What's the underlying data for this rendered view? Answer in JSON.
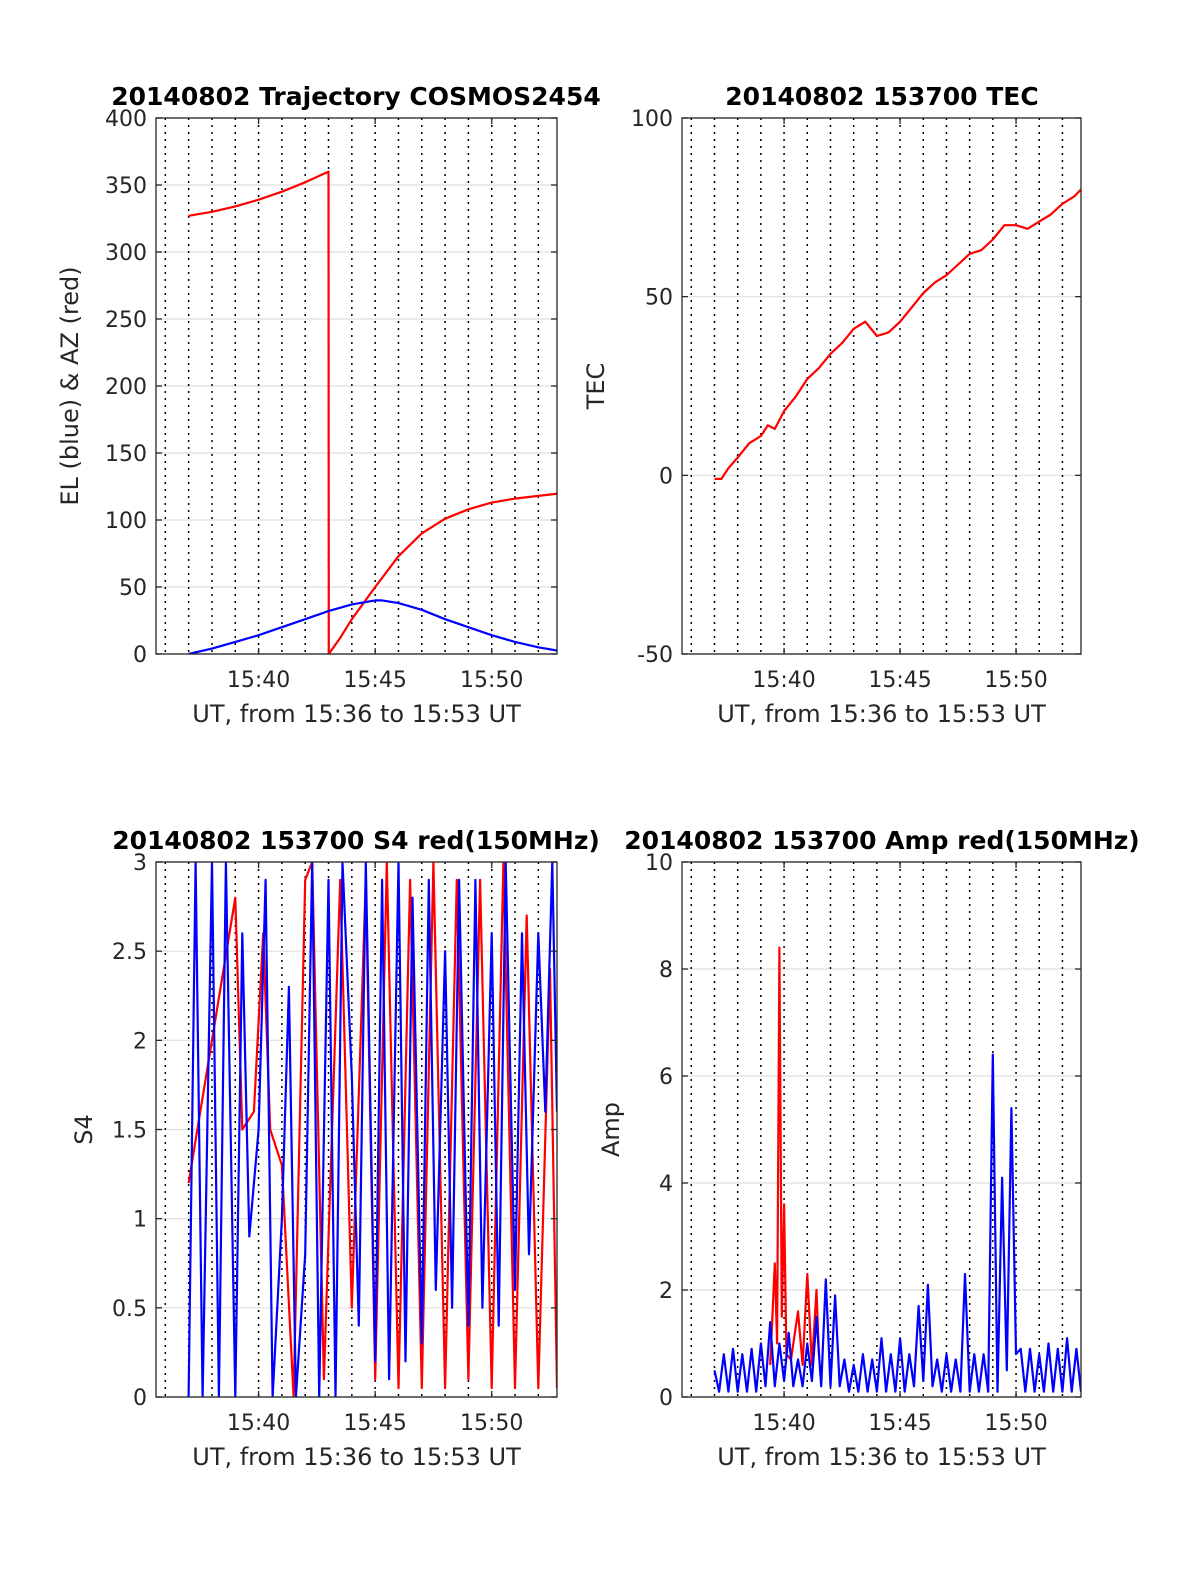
{
  "figure_date": "20140802",
  "chart_data": [
    {
      "id": "trajectory",
      "type": "line",
      "title": "20140802 Trajectory COSMOS2454",
      "xlabel": "UT, from 15:36 to 15:53 UT",
      "ylabel": "EL (blue) & AZ (red)",
      "xlim": [
        15.6,
        32.8
      ],
      "ylim": [
        0,
        400
      ],
      "xticks": [
        20,
        25,
        30
      ],
      "xtick_labels": [
        "15:40",
        "15:45",
        "15:50"
      ],
      "yticks": [
        0,
        50,
        100,
        150,
        200,
        250,
        300,
        350,
        400
      ],
      "ytick_labels": [
        "0",
        "50",
        "100",
        "150",
        "200",
        "250",
        "300",
        "350",
        "400"
      ],
      "vgrid_minutes": [
        16,
        17,
        18,
        19,
        20,
        21,
        22,
        23,
        24,
        25,
        26,
        27,
        28,
        29,
        30,
        31,
        32
      ],
      "grid": true,
      "series": [
        {
          "name": "AZ (red)",
          "color": "#ff0000",
          "x": [
            17,
            18,
            19,
            20,
            21,
            22,
            23,
            23.01,
            23.5,
            24,
            25,
            26,
            27,
            28,
            29,
            30,
            31,
            32,
            33
          ],
          "y": [
            327,
            330,
            334,
            339,
            345,
            352,
            360,
            0,
            12,
            26,
            50,
            73,
            90,
            101,
            108,
            113,
            116,
            118,
            120
          ]
        },
        {
          "name": "EL (blue)",
          "color": "#0000ff",
          "x": [
            17,
            18,
            19,
            20,
            21,
            22,
            23,
            24,
            25,
            25.3,
            26,
            27,
            28,
            29,
            30,
            31,
            32,
            33
          ],
          "y": [
            0,
            4,
            9,
            14,
            20,
            26,
            32,
            37,
            40,
            40,
            38,
            33,
            26,
            20,
            14,
            9,
            5,
            2
          ]
        }
      ]
    },
    {
      "id": "tec",
      "type": "line",
      "title": "20140802 153700 TEC",
      "xlabel": "UT, from 15:36 to 15:53 UT",
      "ylabel": "TEC",
      "xlim": [
        15.6,
        32.8
      ],
      "ylim": [
        -50,
        100
      ],
      "xticks": [
        20,
        25,
        30
      ],
      "xtick_labels": [
        "15:40",
        "15:45",
        "15:50"
      ],
      "yticks": [
        -50,
        0,
        50,
        100
      ],
      "ytick_labels": [
        "-50",
        "0",
        "50",
        "100"
      ],
      "vgrid_minutes": [
        16,
        17,
        18,
        19,
        20,
        21,
        22,
        23,
        24,
        25,
        26,
        27,
        28,
        29,
        30,
        31,
        32
      ],
      "grid": true,
      "series": [
        {
          "name": "TEC",
          "color": "#ff0000",
          "x": [
            17,
            17.3,
            17.6,
            18,
            18.5,
            19,
            19.3,
            19.6,
            20,
            20.5,
            21,
            21.5,
            22,
            22.5,
            23,
            23.5,
            24,
            24.5,
            25,
            25.5,
            26,
            26.5,
            27,
            27.5,
            28,
            28.5,
            29,
            29.5,
            30,
            30.5,
            31,
            31.5,
            32,
            32.5,
            32.8
          ],
          "y": [
            -1,
            -1,
            2,
            5,
            9,
            11,
            14,
            13,
            18,
            22,
            27,
            30,
            34,
            37,
            41,
            43,
            39,
            40,
            43,
            47,
            51,
            54,
            56,
            59,
            62,
            63,
            66,
            70,
            70,
            69,
            71,
            73,
            76,
            78,
            80
          ]
        }
      ]
    },
    {
      "id": "s4",
      "type": "line",
      "title": "20140802 153700 S4 red(150MHz)",
      "xlabel": "UT, from 15:36 to 15:53 UT",
      "ylabel": "S4",
      "xlim": [
        15.6,
        32.8
      ],
      "ylim": [
        0,
        3
      ],
      "xticks": [
        20,
        25,
        30
      ],
      "xtick_labels": [
        "15:40",
        "15:45",
        "15:50"
      ],
      "yticks": [
        0,
        0.5,
        1,
        1.5,
        2,
        2.5,
        3
      ],
      "ytick_labels": [
        "0",
        "0.5",
        "1",
        "1.5",
        "2",
        "2.5",
        "3"
      ],
      "vgrid_minutes": [
        16,
        17,
        18,
        19,
        20,
        21,
        22,
        23,
        24,
        25,
        26,
        27,
        28,
        29,
        30,
        31,
        32
      ],
      "grid": true,
      "series": [
        {
          "name": "red",
          "color": "#ff0000",
          "x": [
            17,
            19,
            19.3,
            19.8,
            20.2,
            20.5,
            21,
            21.5,
            22,
            22.3,
            22.8,
            23.5,
            24,
            24.6,
            25,
            25.5,
            26,
            26.5,
            27,
            27.5,
            28,
            28.5,
            29,
            29.5,
            30,
            30.5,
            31,
            31.5,
            32,
            32.5,
            32.8
          ],
          "y": [
            1.2,
            2.8,
            1.5,
            1.6,
            2.6,
            1.5,
            1.3,
            0.0,
            2.9,
            3,
            0.1,
            2.9,
            0.5,
            2.9,
            0.1,
            3,
            0.05,
            2.9,
            0.05,
            3,
            0.05,
            2.9,
            0.1,
            2.9,
            0.05,
            3,
            0.05,
            2.7,
            0.05,
            2.4,
            0.05
          ]
        },
        {
          "name": "blue",
          "color": "#0000ff",
          "x": [
            17,
            17.3,
            17.6,
            18,
            18.3,
            18.6,
            19,
            19.3,
            19.6,
            20,
            20.3,
            20.6,
            21,
            21.3,
            21.6,
            22,
            22.3,
            22.6,
            23,
            23.3,
            23.6,
            24,
            24.3,
            24.6,
            25,
            25.3,
            25.6,
            26,
            26.3,
            26.6,
            27,
            27.3,
            27.6,
            28,
            28.3,
            28.6,
            29,
            29.3,
            29.6,
            30,
            30.3,
            30.6,
            31,
            31.3,
            31.6,
            32,
            32.3,
            32.6,
            32.8
          ],
          "y": [
            0,
            3,
            0,
            3,
            0,
            3,
            0,
            2.6,
            0.9,
            1.5,
            2.9,
            0,
            1.0,
            2.3,
            0.0,
            0.8,
            3,
            0.0,
            2.9,
            0,
            3,
            1.8,
            0.4,
            3,
            0.2,
            2.9,
            0.1,
            3,
            0.2,
            2.8,
            0.3,
            2.9,
            0.6,
            2.5,
            0.5,
            2.9,
            0.4,
            2.9,
            0.5,
            2.6,
            0.4,
            3,
            0.6,
            2.6,
            0.8,
            2.6,
            1.6,
            3,
            1.6
          ]
        }
      ]
    },
    {
      "id": "amp",
      "type": "line",
      "title": "20140802 153700 Amp red(150MHz)",
      "xlabel": "UT, from 15:36 to 15:53 UT",
      "ylabel": "Amp",
      "xlim": [
        15.6,
        32.8
      ],
      "ylim": [
        0,
        10
      ],
      "xticks": [
        20,
        25,
        30
      ],
      "xtick_labels": [
        "15:40",
        "15:45",
        "15:50"
      ],
      "yticks": [
        0,
        2,
        4,
        6,
        8,
        10
      ],
      "ytick_labels": [
        "0",
        "2",
        "4",
        "6",
        "8",
        "10"
      ],
      "vgrid_minutes": [
        16,
        17,
        18,
        19,
        20,
        21,
        22,
        23,
        24,
        25,
        26,
        27,
        28,
        29,
        30,
        31,
        32
      ],
      "grid": true,
      "series": [
        {
          "name": "red",
          "color": "#ff0000",
          "x": [
            19.4,
            19.6,
            19.7,
            19.8,
            19.9,
            20,
            20.1,
            20.3,
            20.6,
            20.8,
            21,
            21.2,
            21.4,
            21.5
          ],
          "y": [
            0.6,
            2.5,
            1.0,
            8.4,
            1.5,
            3.6,
            0.8,
            0.7,
            1.6,
            0.6,
            2.3,
            0.6,
            2.0,
            0.8
          ]
        },
        {
          "name": "blue",
          "color": "#0000ff",
          "x": [
            17,
            17.2,
            17.4,
            17.6,
            17.8,
            18,
            18.2,
            18.4,
            18.6,
            18.8,
            19,
            19.2,
            19.4,
            19.6,
            19.8,
            20,
            20.2,
            20.4,
            20.6,
            20.8,
            21,
            21.2,
            21.4,
            21.6,
            21.8,
            22,
            22.2,
            22.4,
            22.6,
            22.8,
            23,
            23.2,
            23.4,
            23.6,
            23.8,
            24,
            24.2,
            24.4,
            24.6,
            24.8,
            25,
            25.2,
            25.4,
            25.6,
            25.8,
            26,
            26.2,
            26.4,
            26.6,
            26.8,
            27,
            27.2,
            27.4,
            27.6,
            27.8,
            28,
            28.2,
            28.4,
            28.6,
            28.8,
            29,
            29.2,
            29.4,
            29.6,
            29.8,
            30,
            30.2,
            30.4,
            30.6,
            30.8,
            31,
            31.2,
            31.4,
            31.6,
            31.8,
            32,
            32.2,
            32.4,
            32.6,
            32.8
          ],
          "y": [
            0.5,
            0.1,
            0.8,
            0.1,
            0.9,
            0.1,
            0.8,
            0.1,
            0.9,
            0.1,
            1.0,
            0.2,
            1.4,
            0.2,
            1.0,
            0.3,
            1.2,
            0.2,
            0.7,
            0.2,
            1.0,
            0.3,
            1.5,
            0.2,
            2.2,
            0.2,
            1.9,
            0.2,
            0.7,
            0.1,
            0.6,
            0.1,
            0.8,
            0.1,
            0.7,
            0.1,
            1.1,
            0.1,
            0.8,
            0.1,
            1.1,
            0.1,
            0.8,
            0.2,
            1.7,
            0.3,
            2.1,
            0.2,
            0.7,
            0.1,
            0.8,
            0.1,
            0.7,
            0.1,
            2.3,
            0.1,
            0.8,
            0.1,
            0.8,
            0.1,
            6.4,
            0.1,
            4.1,
            0.5,
            5.4,
            0.8,
            0.9,
            0.1,
            0.9,
            0.1,
            0.8,
            0.1,
            1.0,
            0.1,
            0.9,
            0.1,
            1.1,
            0.1,
            0.9,
            0.1
          ]
        }
      ]
    }
  ]
}
